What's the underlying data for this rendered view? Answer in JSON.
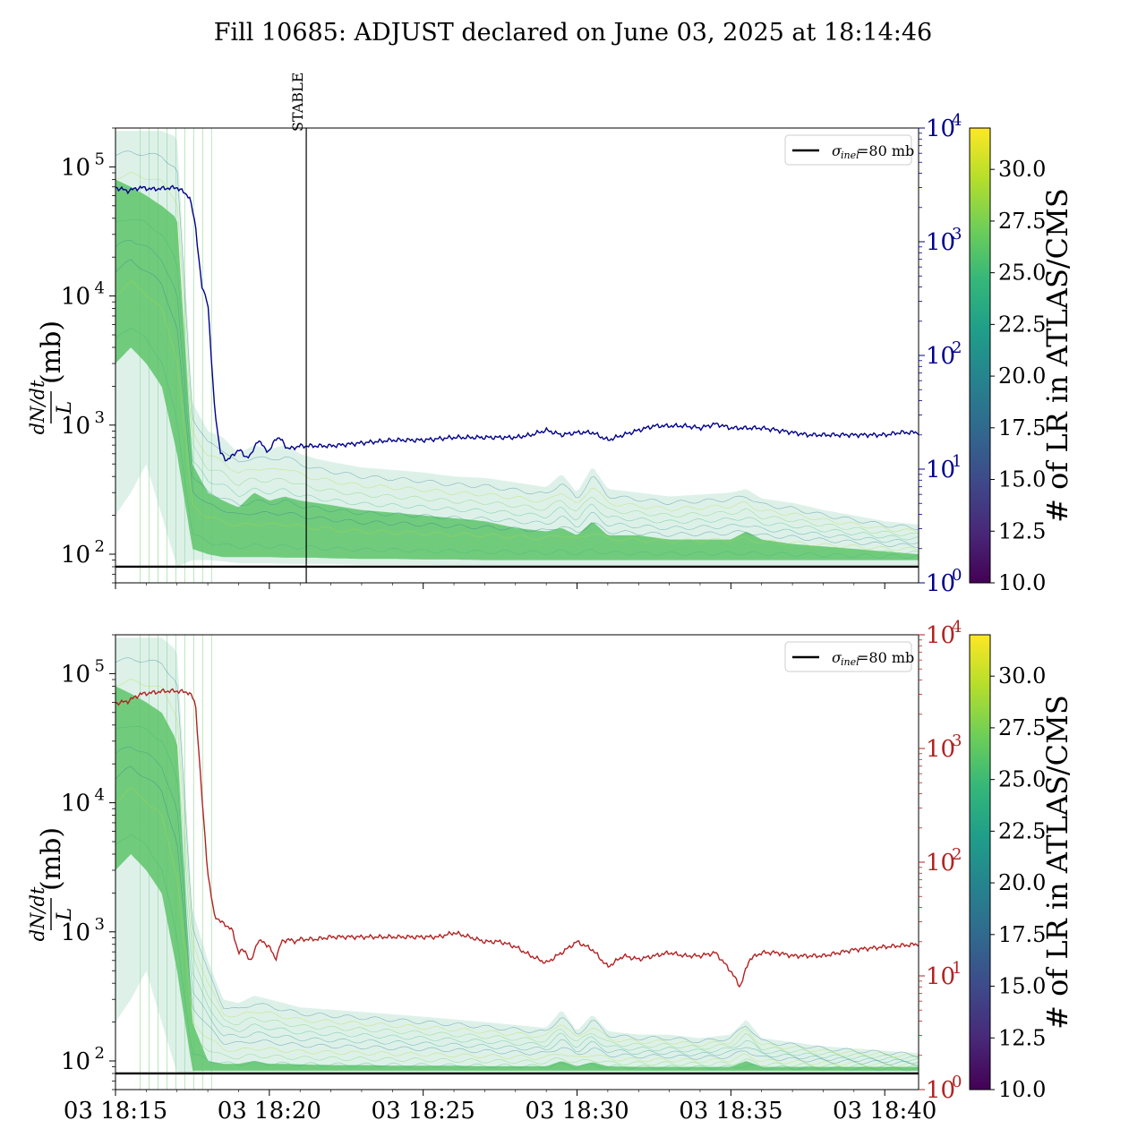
{
  "title": "Fill 10685: ADJUST declared on June 03, 2025 at 18:14:46",
  "colors": {
    "blue_trace": "#00008b",
    "red_trace": "#b22222",
    "sigma_line": "#000000",
    "viridis": [
      "#440154",
      "#482878",
      "#3e4989",
      "#31688e",
      "#26828e",
      "#1f9e89",
      "#35b779",
      "#6ece58",
      "#b5de2b",
      "#fde725"
    ]
  },
  "chart_data": [
    {
      "type": "line",
      "panel": "top",
      "ylabel_frac_num": "dN/dt",
      "ylabel_frac_den": "L",
      "ylabel_unit": "(mb)",
      "yscale": "log",
      "ylim": [
        60,
        200000
      ],
      "yticks": [
        {
          "v": 100,
          "m": "2"
        },
        {
          "v": 1000,
          "m": "3"
        },
        {
          "v": 10000,
          "m": "4"
        },
        {
          "v": 100000,
          "m": "5"
        }
      ],
      "y2scale": "log",
      "y2lim": [
        1,
        10000
      ],
      "y2ticks": [
        {
          "v": 1,
          "m": "0"
        },
        {
          "v": 10,
          "m": "1"
        },
        {
          "v": 100,
          "m": "2"
        },
        {
          "v": 1000,
          "m": "3"
        },
        {
          "v": 10000,
          "m": "4"
        }
      ],
      "y2color": "#00008b",
      "xlim_min": [
        0,
        26.1
      ],
      "xticks_min": [
        0,
        5,
        10,
        15,
        20,
        25
      ],
      "xtick_labels": [],
      "vline": {
        "x_min": 6.2,
        "label": "STABLE"
      },
      "sigma_inel_mb": 80,
      "legend_label": "=80 mb",
      "legend_symbol": "σ",
      "legend_sub": "inel",
      "legend_loc": "upper right",
      "colorbar": {
        "label": "# of LR in ATLAS/CMS",
        "range": [
          10.0,
          32.0
        ],
        "ticks": [
          "10.0",
          "12.5",
          "15.0",
          "17.5",
          "20.0",
          "22.5",
          "25.0",
          "27.5",
          "30.0"
        ]
      },
      "secondary_series": {
        "color": "#00008b",
        "x_min": [
          0,
          0.4,
          0.8,
          1.2,
          1.6,
          2.0,
          2.4,
          2.6,
          2.8,
          3.0,
          3.2,
          3.4,
          3.6,
          3.8,
          4.0,
          4.2,
          4.4,
          4.6,
          4.8,
          5.0,
          5.2,
          5.4,
          5.6,
          6.0,
          6.5,
          7,
          8,
          9,
          10,
          11,
          12,
          12.5,
          13,
          13.5,
          14,
          14.5,
          15,
          15.5,
          16,
          16.5,
          17,
          17.5,
          18,
          18.5,
          19,
          19.5,
          20,
          20.5,
          21,
          21.5,
          22,
          22.5,
          23,
          23.5,
          24,
          24.5,
          25,
          25.5,
          26.1
        ],
        "values": [
          3000,
          2800,
          3000,
          2900,
          2950,
          3000,
          2500,
          1400,
          400,
          300,
          40,
          14,
          12,
          13,
          15,
          13,
          13,
          18,
          16,
          14,
          19,
          18,
          15,
          16,
          16,
          16,
          17,
          18,
          18,
          19,
          19,
          19,
          19,
          20,
          22,
          20,
          21,
          21,
          18,
          20,
          22,
          24,
          24,
          24,
          23,
          25,
          23,
          23,
          23,
          22,
          21,
          20,
          20,
          20,
          20,
          20,
          20,
          21,
          21
        ]
      },
      "band": {
        "x_min": [
          0,
          0.5,
          1,
          1.5,
          2,
          2.5,
          3,
          3.5,
          4,
          4.5,
          5,
          5.5,
          6,
          6.5,
          7,
          8,
          9,
          10,
          11,
          12,
          13,
          14,
          14.5,
          15,
          15.5,
          16,
          17,
          18,
          19,
          20,
          20.5,
          21,
          22,
          23,
          24,
          25,
          26.1
        ],
        "upper": [
          190000,
          190000,
          190000,
          190000,
          170000,
          1500,
          900,
          800,
          600,
          700,
          650,
          700,
          600,
          550,
          520,
          470,
          450,
          430,
          400,
          390,
          360,
          330,
          420,
          300,
          480,
          320,
          300,
          280,
          290,
          300,
          320,
          270,
          250,
          220,
          200,
          180,
          170
        ],
        "lower": [
          200,
          300,
          500,
          200,
          80,
          90,
          90,
          88,
          85,
          85,
          85,
          84,
          84,
          84,
          84,
          83,
          83,
          83,
          82,
          82,
          82,
          82,
          82,
          82,
          82,
          82,
          82,
          82,
          82,
          82,
          82,
          82,
          82,
          82,
          82,
          82,
          82
        ],
        "core_upper": [
          80000,
          70000,
          60000,
          50000,
          40000,
          500,
          300,
          260,
          230,
          300,
          260,
          280,
          260,
          250,
          240,
          220,
          210,
          200,
          190,
          180,
          160,
          150,
          160,
          140,
          180,
          140,
          140,
          130,
          130,
          130,
          150,
          130,
          120,
          115,
          110,
          105,
          100
        ],
        "core_lower": [
          3000,
          4000,
          3000,
          2000,
          600,
          110,
          100,
          95,
          95,
          95,
          95,
          94,
          94,
          94,
          93,
          92,
          92,
          91,
          91,
          90,
          90,
          90,
          90,
          90,
          90,
          90,
          90,
          90,
          90,
          90,
          90,
          90,
          90,
          90,
          90,
          90,
          90
        ]
      }
    },
    {
      "type": "line",
      "panel": "bottom",
      "ylabel_frac_num": "dN/dt",
      "ylabel_frac_den": "L",
      "ylabel_unit": "(mb)",
      "yscale": "log",
      "ylim": [
        60,
        200000
      ],
      "yticks": [
        {
          "v": 100,
          "m": "2"
        },
        {
          "v": 1000,
          "m": "3"
        },
        {
          "v": 10000,
          "m": "4"
        },
        {
          "v": 100000,
          "m": "5"
        }
      ],
      "y2scale": "log",
      "y2lim": [
        1,
        10000
      ],
      "y2ticks": [
        {
          "v": 1,
          "m": "0"
        },
        {
          "v": 10,
          "m": "1"
        },
        {
          "v": 100,
          "m": "2"
        },
        {
          "v": 1000,
          "m": "3"
        },
        {
          "v": 10000,
          "m": "4"
        }
      ],
      "y2color": "#b22222",
      "xlim_min": [
        0,
        26.1
      ],
      "xticks_min": [
        0,
        5,
        10,
        15,
        20,
        25
      ],
      "xtick_labels": [
        "03 18:15",
        "03 18:20",
        "03 18:25",
        "03 18:30",
        "03 18:35",
        "03 18:40"
      ],
      "sigma_inel_mb": 80,
      "legend_label": "=80 mb",
      "legend_symbol": "σ",
      "legend_sub": "inel",
      "legend_loc": "upper right",
      "colorbar": {
        "label": "# of LR in ATLAS/CMS",
        "range": [
          10.0,
          32.0
        ],
        "ticks": [
          "10.0",
          "12.5",
          "15.0",
          "17.5",
          "20.0",
          "22.5",
          "25.0",
          "27.5",
          "30.0"
        ]
      },
      "secondary_series": {
        "color": "#b22222",
        "x_min": [
          0,
          0.4,
          0.8,
          1.2,
          1.6,
          2.0,
          2.4,
          2.6,
          2.8,
          3.0,
          3.2,
          3.4,
          3.6,
          3.8,
          4.0,
          4.2,
          4.4,
          4.6,
          4.8,
          5.0,
          5.2,
          5.4,
          5.6,
          5.8,
          6.0,
          6.5,
          7,
          8,
          9,
          10,
          10.5,
          11,
          11.5,
          12,
          12.5,
          13,
          13.5,
          14,
          14.5,
          15,
          15.5,
          16,
          16.5,
          17,
          17.5,
          18,
          18.5,
          19,
          19.5,
          20,
          20.3,
          20.6,
          21,
          21.5,
          22,
          23,
          24,
          25,
          26.1
        ],
        "values": [
          2500,
          2600,
          3000,
          3100,
          3200,
          3200,
          3100,
          2500,
          400,
          80,
          35,
          30,
          28,
          25,
          16,
          17,
          13,
          20,
          20,
          18,
          14,
          20,
          21,
          20,
          21,
          21,
          22,
          22,
          22,
          22,
          22,
          24,
          22,
          20,
          20,
          18,
          15,
          13,
          16,
          20,
          17,
          12,
          15,
          14,
          15,
          16,
          15,
          15,
          16,
          11,
          8,
          14,
          16,
          16,
          15,
          15,
          17,
          18,
          19
        ]
      },
      "band": {
        "x_min": [
          0,
          0.5,
          1,
          1.5,
          2,
          2.5,
          3,
          3.5,
          4,
          4.5,
          5,
          5.5,
          6,
          7,
          8,
          9,
          10,
          11,
          12,
          13,
          14,
          14.5,
          15,
          15.5,
          16,
          17,
          18,
          19,
          20,
          20.5,
          21,
          22,
          23,
          24,
          25,
          26.1
        ],
        "upper": [
          190000,
          190000,
          190000,
          190000,
          150000,
          1500,
          600,
          300,
          280,
          320,
          300,
          280,
          260,
          250,
          240,
          230,
          220,
          210,
          200,
          190,
          180,
          250,
          170,
          230,
          170,
          160,
          160,
          150,
          160,
          210,
          150,
          140,
          130,
          125,
          120,
          115
        ],
        "lower": [
          200,
          300,
          500,
          200,
          80,
          80,
          80,
          80,
          80,
          80,
          80,
          80,
          80,
          80,
          80,
          80,
          80,
          80,
          80,
          80,
          80,
          80,
          80,
          80,
          80,
          80,
          80,
          80,
          80,
          80,
          80,
          80,
          80,
          80,
          80,
          80
        ],
        "core_upper": [
          80000,
          70000,
          60000,
          50000,
          30000,
          200,
          100,
          95,
          95,
          100,
          95,
          95,
          94,
          93,
          93,
          92,
          92,
          92,
          91,
          91,
          91,
          100,
          91,
          98,
          91,
          90,
          90,
          90,
          90,
          100,
          90,
          90,
          90,
          90,
          90,
          90
        ],
        "core_lower": [
          3000,
          4000,
          3000,
          2000,
          500,
          84,
          84,
          84,
          84,
          84,
          84,
          84,
          84,
          84,
          84,
          84,
          84,
          84,
          84,
          84,
          84,
          84,
          84,
          84,
          84,
          84,
          84,
          84,
          84,
          84,
          84,
          84,
          84,
          84,
          84,
          84
        ]
      }
    }
  ]
}
